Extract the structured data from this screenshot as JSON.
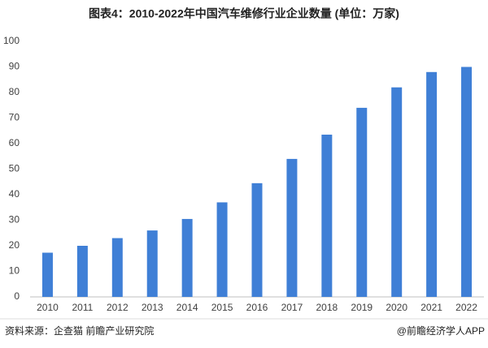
{
  "chart_data": {
    "type": "bar",
    "title": "图表4：2010-2022年中国汽车维修行业企业数量 (单位：万家)",
    "categories": [
      "2010",
      "2011",
      "2012",
      "2013",
      "2014",
      "2015",
      "2016",
      "2017",
      "2018",
      "2019",
      "2020",
      "2021",
      "2022"
    ],
    "values": [
      17.3,
      20,
      23,
      26,
      30.5,
      37,
      44.5,
      54,
      63.5,
      74,
      82,
      88,
      90
    ],
    "color": "#3f7fd6",
    "ylim": [
      0,
      100
    ],
    "yticks": [
      0,
      10,
      20,
      30,
      40,
      50,
      60,
      70,
      80,
      90,
      100
    ],
    "grid": false,
    "source": "资料来源：企查猫 前瞻产业研究院",
    "credit": "@前瞻经济学人APP"
  }
}
